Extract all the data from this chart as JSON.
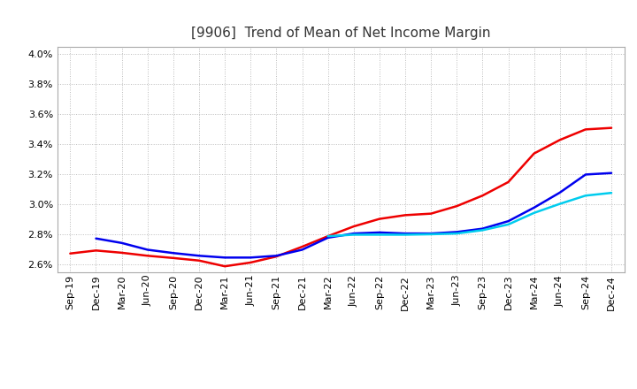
{
  "title": "[9906]  Trend of Mean of Net Income Margin",
  "ylim": [
    0.0255,
    0.0405
  ],
  "yticks": [
    0.026,
    0.028,
    0.03,
    0.032,
    0.034,
    0.036,
    0.038,
    0.04
  ],
  "xlabels": [
    "Sep-19",
    "Dec-19",
    "Mar-20",
    "Jun-20",
    "Sep-20",
    "Dec-20",
    "Mar-21",
    "Jun-21",
    "Sep-21",
    "Dec-21",
    "Mar-22",
    "Jun-22",
    "Sep-22",
    "Dec-22",
    "Mar-23",
    "Jun-23",
    "Sep-23",
    "Dec-23",
    "Mar-24",
    "Jun-24",
    "Sep-24",
    "Dec-24"
  ],
  "series_3yr": [
    0.02675,
    0.02695,
    0.0268,
    0.0266,
    0.02645,
    0.02628,
    0.0259,
    0.02615,
    0.02655,
    0.0272,
    0.0279,
    0.02855,
    0.02905,
    0.0293,
    0.0294,
    0.0299,
    0.0306,
    0.0315,
    0.0334,
    0.0343,
    0.035,
    0.0351
  ],
  "series_5yr": [
    null,
    0.02775,
    0.02745,
    0.027,
    0.02678,
    0.0266,
    0.02648,
    0.02648,
    0.0266,
    0.027,
    0.0278,
    0.02808,
    0.02815,
    0.02808,
    0.02808,
    0.02818,
    0.0284,
    0.0289,
    0.0298,
    0.0308,
    0.032,
    0.0321
  ],
  "series_7yr": [
    null,
    null,
    null,
    null,
    null,
    null,
    null,
    null,
    null,
    null,
    0.0279,
    0.028,
    0.028,
    0.028,
    0.02803,
    0.02808,
    0.0283,
    0.02868,
    0.02945,
    0.03005,
    0.0306,
    0.03078
  ],
  "series_10yr": [
    null,
    null,
    null,
    null,
    null,
    null,
    null,
    null,
    null,
    null,
    null,
    null,
    null,
    null,
    null,
    null,
    null,
    null,
    null,
    null,
    null,
    null
  ],
  "color_3yr": "#EE0000",
  "color_5yr": "#0000EE",
  "color_7yr": "#00CCEE",
  "color_10yr": "#00AA00",
  "background_color": "#FFFFFF",
  "grid_color": "#BBBBBB",
  "title_fontsize": 11,
  "tick_fontsize": 8,
  "legend_fontsize": 9
}
